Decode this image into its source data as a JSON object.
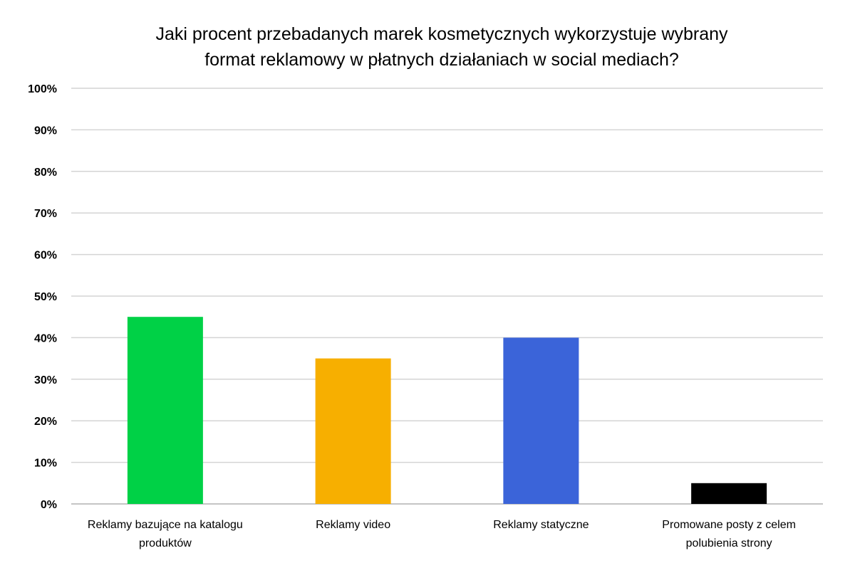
{
  "chart_data": {
    "type": "bar",
    "title": "Jaki procent przebadanych marek kosmetycznych wykorzystuje wybrany format reklamowy w płatnych działaniach w social mediach?",
    "title_lines": [
      "Jaki procent przebadanych marek kosmetycznych wykorzystuje wybrany",
      "format reklamowy w płatnych działaniach w social mediach?"
    ],
    "categories": [
      [
        "Reklamy bazujące na katalogu",
        "produktów"
      ],
      [
        "Reklamy video"
      ],
      [
        "Reklamy statyczne"
      ],
      [
        "Promowane posty z celem",
        "polubienia strony"
      ]
    ],
    "values": [
      45,
      35,
      40,
      5
    ],
    "colors": [
      "#00d146",
      "#f7af00",
      "#3b64d9",
      "#000000"
    ],
    "ylim": [
      0,
      100
    ],
    "yticks": [
      "0%",
      "10%",
      "20%",
      "30%",
      "40%",
      "50%",
      "60%",
      "70%",
      "80%",
      "90%",
      "100%"
    ],
    "xlabel": "",
    "ylabel": "",
    "grid": true,
    "legend": "none"
  }
}
